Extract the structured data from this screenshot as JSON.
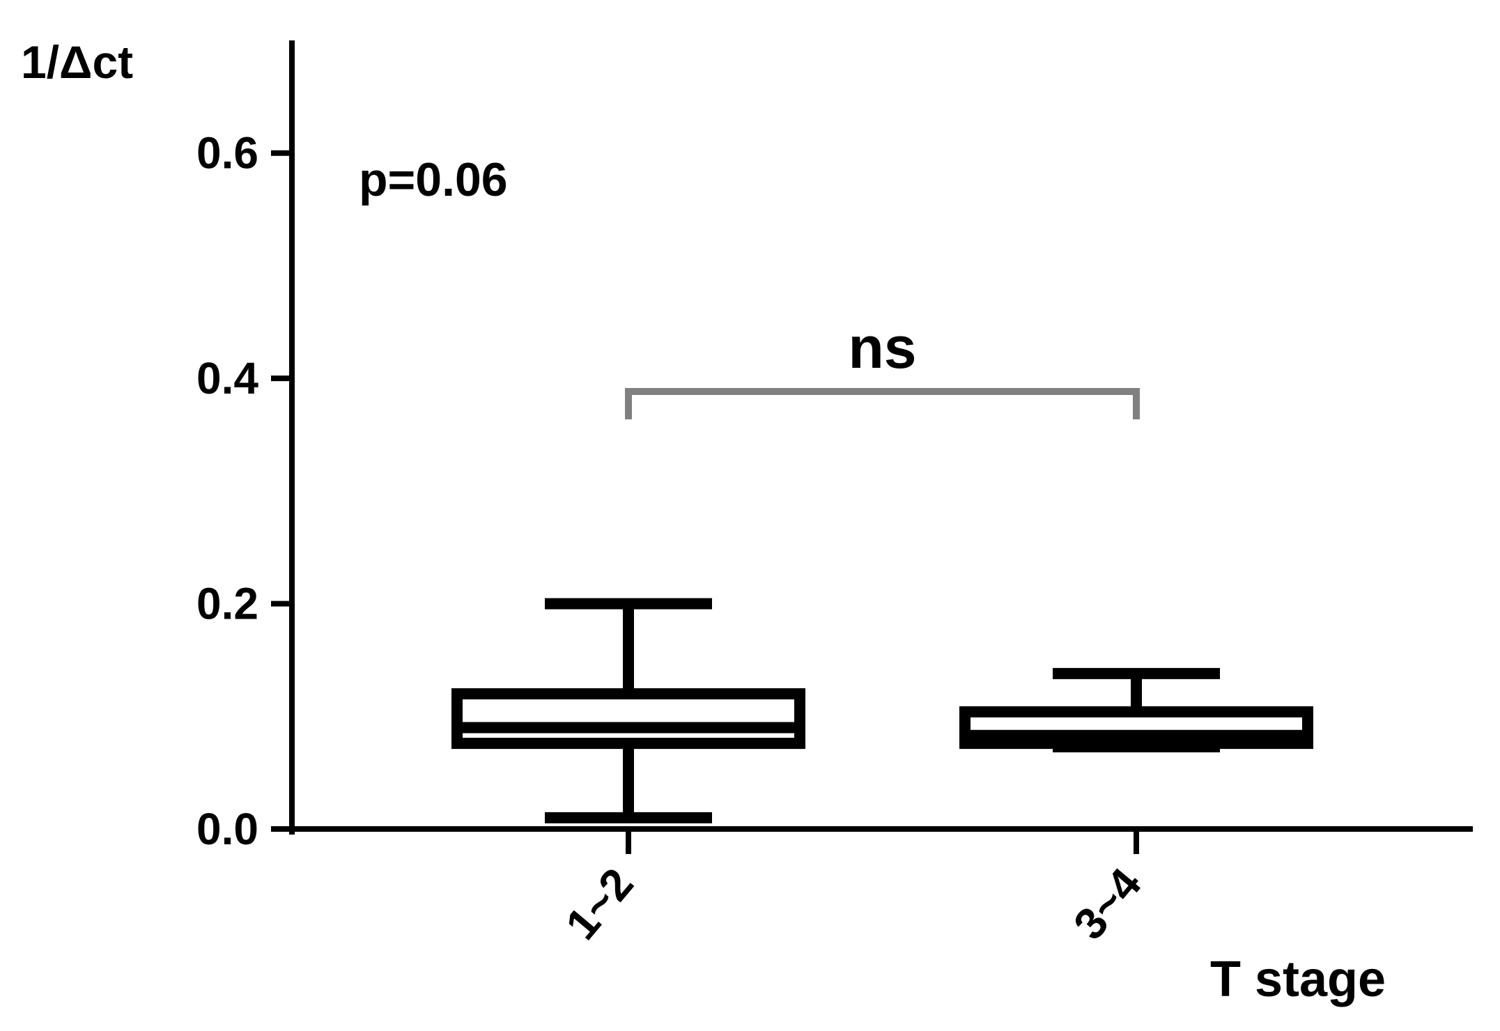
{
  "chart_data": {
    "type": "box",
    "y_label": "1/Δct",
    "x_label": "T stage",
    "categories": [
      "1~2",
      "3~4"
    ],
    "boxes": [
      {
        "min": 0.01,
        "q1": 0.076,
        "median": 0.09,
        "q3": 0.12,
        "max": 0.2
      },
      {
        "min": 0.073,
        "q1": 0.076,
        "median": 0.083,
        "q3": 0.104,
        "max": 0.138
      }
    ],
    "color": "#000000",
    "ylim": [
      0,
      0.7
    ],
    "yticks": [
      0.0,
      0.2,
      0.4,
      0.6
    ],
    "yticks_labels_fixed": null,
    "annotations": [
      "p=0.06",
      "ns"
    ],
    "annotation_color": "#808080"
  }
}
